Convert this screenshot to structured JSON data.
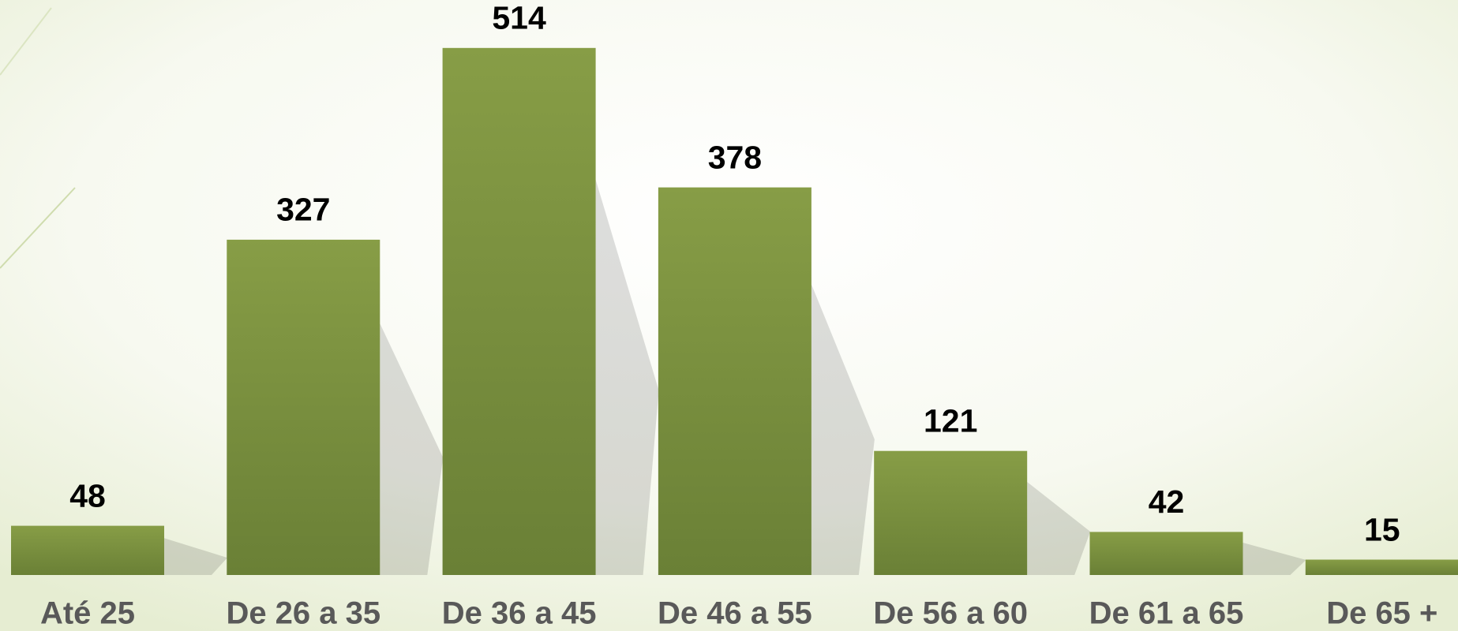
{
  "chart_data": {
    "type": "bar",
    "categories": [
      "Até 25",
      "De 26 a 35",
      "De 36 a 45",
      "De 46 a 55",
      "De 56 a 60",
      "De 61 a 65",
      "De 65 +"
    ],
    "values": [
      48,
      327,
      514,
      378,
      121,
      42,
      15
    ],
    "color": "#7a933f"
  }
}
